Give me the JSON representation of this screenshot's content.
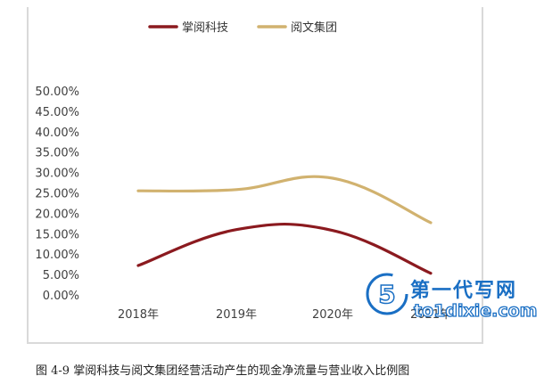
{
  "chart_data": {
    "type": "line",
    "categories": [
      "2018年",
      "2019年",
      "2020年",
      "2021年"
    ],
    "series": [
      {
        "name": "掌阅科技",
        "color": "#8b1a1f",
        "values": [
          7.2,
          16.0,
          15.8,
          5.3
        ]
      },
      {
        "name": "阅文集团",
        "color": "#d1b26f",
        "values": [
          25.5,
          25.8,
          28.6,
          17.7
        ]
      }
    ],
    "ylim": [
      0,
      50
    ],
    "yticks": [
      "0.00%",
      "5.00%",
      "10.00%",
      "15.00%",
      "20.00%",
      "25.00%",
      "30.00%",
      "35.00%",
      "40.00%",
      "45.00%",
      "50.00%"
    ],
    "ytick_values": [
      0,
      5,
      10,
      15,
      20,
      25,
      30,
      35,
      40,
      45,
      50
    ],
    "grid": false,
    "smooth": true,
    "legend": "top-center"
  },
  "caption": "图 4-9  掌阅科技与阅文集团经营活动产生的现金净流量与营业收入比例图",
  "watermark": {
    "title": "第一代写网",
    "url": "to1dixie.com"
  }
}
